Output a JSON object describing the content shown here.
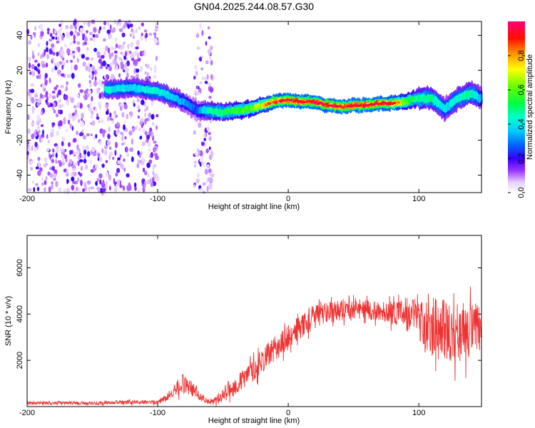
{
  "title": "GN04.2025.244.08.57.G30",
  "chart_data": [
    {
      "type": "heatmap",
      "name": "spectrogram",
      "xlabel": "Height of straight line (km)",
      "ylabel": "Frequency (Hz)",
      "xlim": [
        -200,
        148
      ],
      "ylim": [
        -50,
        48
      ],
      "xticks": [
        -200,
        -100,
        0,
        100
      ],
      "yticks": [
        -40,
        -20,
        0,
        20,
        40
      ],
      "colorbar": {
        "label": "Normalized spectral amplitude",
        "range": [
          0,
          1
        ],
        "ticks": [
          0.0,
          0.2,
          0.4,
          0.6,
          0.8
        ],
        "tick_labels": [
          "0.0",
          "0.2",
          "0.4",
          "0.6",
          "0.8"
        ],
        "colormap": "white-purple-blue-cyan-green-yellow-red-magenta"
      },
      "ridge": {
        "description": "dominant frequency trace vs height",
        "x": [
          -140,
          -120,
          -100,
          -90,
          -80,
          -70,
          -60,
          -50,
          -40,
          -30,
          -20,
          -10,
          0,
          10,
          20,
          30,
          40,
          50,
          60,
          70,
          80,
          90,
          100,
          110,
          120,
          130,
          140,
          148
        ],
        "y": [
          9,
          10,
          8,
          5,
          2,
          -3,
          -3,
          -4,
          -3,
          -2,
          0,
          2,
          3,
          2,
          2,
          0,
          -1,
          0,
          0,
          1,
          1,
          2,
          4,
          4,
          -2,
          4,
          7,
          4
        ],
        "peak_amplitude": [
          0.5,
          0.45,
          0.5,
          0.45,
          0.4,
          0.3,
          0.55,
          0.6,
          0.65,
          0.7,
          0.8,
          0.9,
          0.95,
          0.95,
          0.95,
          0.95,
          0.95,
          0.95,
          0.95,
          0.95,
          0.9,
          0.7,
          0.55,
          0.55,
          0.45,
          0.5,
          0.55,
          0.4
        ]
      },
      "noise_regions": [
        {
          "x_from": -200,
          "x_to": -100,
          "amplitude": 0.08
        },
        {
          "x_from": -72,
          "x_to": -58,
          "amplitude": 0.05
        }
      ]
    },
    {
      "type": "line",
      "name": "snr",
      "xlabel": "Height of straight line (km)",
      "ylabel": "SNR (10 * v/v)",
      "xlim": [
        -200,
        148
      ],
      "ylim": [
        0,
        7400
      ],
      "xticks": [
        -200,
        -100,
        0,
        100
      ],
      "yticks": [
        2000,
        4000,
        6000
      ],
      "series": [
        {
          "name": "SNR",
          "color": "#ee3333",
          "envelope_x": [
            -200,
            -150,
            -120,
            -100,
            -90,
            -85,
            -80,
            -75,
            -70,
            -60,
            -50,
            -40,
            -30,
            -20,
            -10,
            0,
            10,
            20,
            30,
            40,
            50,
            60,
            70,
            80,
            90,
            100,
            110,
            120,
            130,
            140,
            148
          ],
          "envelope_mean": [
            150,
            150,
            180,
            200,
            500,
            800,
            1000,
            800,
            600,
            150,
            500,
            900,
            1400,
            2000,
            2500,
            3000,
            3500,
            3900,
            4100,
            4200,
            4200,
            4200,
            4100,
            4100,
            4000,
            3800,
            3500,
            3300,
            3200,
            3300,
            3300
          ],
          "envelope_spread": [
            120,
            120,
            140,
            150,
            300,
            600,
            800,
            600,
            400,
            150,
            500,
            700,
            800,
            900,
            900,
            900,
            900,
            900,
            800,
            800,
            700,
            700,
            700,
            900,
            1200,
            1600,
            2200,
            2400,
            2200,
            2000,
            2000
          ]
        }
      ]
    }
  ]
}
